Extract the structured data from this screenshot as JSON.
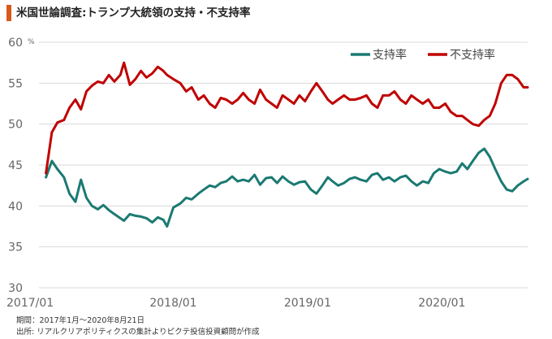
{
  "title": "米国世論調査:トランプ大統領の支持・不支持率",
  "footer": {
    "period": "期間：2017年1月～2020年8月21日",
    "source": "出所: リアルクリアポリティクスの集計よりピクテ投信投資顧問が作成"
  },
  "colors": {
    "accent": "#d85a1a",
    "approve": "#1a7a72",
    "disapprove": "#c00000",
    "grid": "#d9d9d9"
  },
  "chart_data": {
    "type": "line",
    "ylabel": "%",
    "ylim": [
      30,
      60
    ],
    "yticks": [
      30,
      35,
      40,
      45,
      50,
      55,
      60
    ],
    "xlim": [
      "2017-01-20",
      "2020-08-21"
    ],
    "xticks": [
      {
        "date": "2017-01-01",
        "label": "2017/01"
      },
      {
        "date": "2018-01-01",
        "label": "2018/01"
      },
      {
        "date": "2019-01-01",
        "label": "2019/01"
      },
      {
        "date": "2020-01-01",
        "label": "2020/01"
      }
    ],
    "grid": "horizontal",
    "legend_position": "top-right",
    "series": [
      {
        "name": "支持率",
        "color": "#1a7a72",
        "x": [
          "2017-01-20",
          "2017-02-05",
          "2017-02-20",
          "2017-03-10",
          "2017-03-25",
          "2017-04-10",
          "2017-04-25",
          "2017-05-10",
          "2017-05-25",
          "2017-06-10",
          "2017-06-25",
          "2017-07-10",
          "2017-07-25",
          "2017-08-10",
          "2017-08-20",
          "2017-09-05",
          "2017-09-20",
          "2017-10-05",
          "2017-10-20",
          "2017-11-05",
          "2017-11-20",
          "2017-12-05",
          "2017-12-15",
          "2018-01-01",
          "2018-01-20",
          "2018-02-05",
          "2018-02-20",
          "2018-03-10",
          "2018-03-25",
          "2018-04-10",
          "2018-04-25",
          "2018-05-10",
          "2018-05-25",
          "2018-06-10",
          "2018-06-25",
          "2018-07-10",
          "2018-07-25",
          "2018-08-10",
          "2018-08-25",
          "2018-09-10",
          "2018-09-25",
          "2018-10-10",
          "2018-10-25",
          "2018-11-10",
          "2018-11-25",
          "2018-12-10",
          "2018-12-25",
          "2019-01-10",
          "2019-01-25",
          "2019-02-10",
          "2019-02-25",
          "2019-03-10",
          "2019-03-25",
          "2019-04-10",
          "2019-04-25",
          "2019-05-10",
          "2019-05-25",
          "2019-06-10",
          "2019-06-25",
          "2019-07-10",
          "2019-07-25",
          "2019-08-10",
          "2019-08-25",
          "2019-09-10",
          "2019-09-25",
          "2019-10-10",
          "2019-10-25",
          "2019-11-10",
          "2019-11-25",
          "2019-12-10",
          "2019-12-25",
          "2020-01-10",
          "2020-01-25",
          "2020-02-10",
          "2020-02-25",
          "2020-03-10",
          "2020-03-25",
          "2020-04-10",
          "2020-04-25",
          "2020-05-10",
          "2020-05-25",
          "2020-06-10",
          "2020-06-25",
          "2020-07-10",
          "2020-07-25",
          "2020-08-10",
          "2020-08-21"
        ],
        "values": [
          43.5,
          45.5,
          44.5,
          43.5,
          41.5,
          40.5,
          43.2,
          41.0,
          40.0,
          39.6,
          40.1,
          39.5,
          39.0,
          38.5,
          38.2,
          39.0,
          38.8,
          38.7,
          38.5,
          38.0,
          38.6,
          38.3,
          37.5,
          39.8,
          40.3,
          41.0,
          40.8,
          41.5,
          42.0,
          42.5,
          42.3,
          42.8,
          43.0,
          43.6,
          43.0,
          43.2,
          43.0,
          43.8,
          42.6,
          43.4,
          43.5,
          42.8,
          43.6,
          43.0,
          42.6,
          42.9,
          43.0,
          42.0,
          41.5,
          42.5,
          43.5,
          43.0,
          42.5,
          42.8,
          43.3,
          43.5,
          43.2,
          43.0,
          43.8,
          44.0,
          43.2,
          43.5,
          43.0,
          43.5,
          43.7,
          43.0,
          42.5,
          43.0,
          42.8,
          44.0,
          44.5,
          44.2,
          44.0,
          44.2,
          45.2,
          44.5,
          45.5,
          46.5,
          47.0,
          46.0,
          44.5,
          43.0,
          42.0,
          41.8,
          42.5,
          43.0,
          43.3
        ]
      },
      {
        "name": "不支持率",
        "color": "#c00000",
        "x": [
          "2017-01-20",
          "2017-02-05",
          "2017-02-20",
          "2017-03-10",
          "2017-03-25",
          "2017-04-10",
          "2017-04-25",
          "2017-05-10",
          "2017-05-25",
          "2017-06-10",
          "2017-06-25",
          "2017-07-10",
          "2017-07-25",
          "2017-08-10",
          "2017-08-20",
          "2017-09-05",
          "2017-09-20",
          "2017-10-05",
          "2017-10-20",
          "2017-11-05",
          "2017-11-20",
          "2017-12-05",
          "2017-12-15",
          "2018-01-01",
          "2018-01-20",
          "2018-02-05",
          "2018-02-20",
          "2018-03-10",
          "2018-03-25",
          "2018-04-10",
          "2018-04-25",
          "2018-05-10",
          "2018-05-25",
          "2018-06-10",
          "2018-06-25",
          "2018-07-10",
          "2018-07-25",
          "2018-08-10",
          "2018-08-25",
          "2018-09-10",
          "2018-09-25",
          "2018-10-10",
          "2018-10-25",
          "2018-11-10",
          "2018-11-25",
          "2018-12-10",
          "2018-12-25",
          "2019-01-10",
          "2019-01-25",
          "2019-02-10",
          "2019-02-25",
          "2019-03-10",
          "2019-03-25",
          "2019-04-10",
          "2019-04-25",
          "2019-05-10",
          "2019-05-25",
          "2019-06-10",
          "2019-06-25",
          "2019-07-10",
          "2019-07-25",
          "2019-08-10",
          "2019-08-25",
          "2019-09-10",
          "2019-09-25",
          "2019-10-10",
          "2019-10-25",
          "2019-11-10",
          "2019-11-25",
          "2019-12-10",
          "2019-12-25",
          "2020-01-10",
          "2020-01-25",
          "2020-02-10",
          "2020-02-25",
          "2020-03-10",
          "2020-03-25",
          "2020-04-10",
          "2020-04-25",
          "2020-05-10",
          "2020-05-25",
          "2020-06-10",
          "2020-06-25",
          "2020-07-10",
          "2020-07-25",
          "2020-08-10",
          "2020-08-21"
        ],
        "values": [
          44.0,
          49.0,
          50.2,
          50.5,
          52.0,
          53.0,
          51.8,
          54.0,
          54.7,
          55.2,
          55.0,
          56.0,
          55.2,
          56.0,
          57.5,
          54.8,
          55.5,
          56.5,
          55.7,
          56.2,
          57.0,
          56.5,
          56.0,
          55.5,
          55.0,
          54.0,
          54.5,
          53.0,
          53.5,
          52.5,
          52.0,
          53.2,
          53.0,
          52.5,
          53.0,
          53.8,
          53.0,
          52.5,
          54.2,
          53.0,
          52.5,
          52.0,
          53.5,
          53.0,
          52.5,
          53.5,
          52.8,
          54.0,
          55.0,
          54.0,
          53.0,
          52.5,
          53.0,
          53.5,
          53.0,
          53.0,
          53.2,
          53.5,
          52.5,
          52.0,
          53.5,
          53.5,
          54.0,
          53.0,
          52.5,
          53.5,
          53.0,
          52.5,
          53.0,
          52.0,
          52.0,
          52.5,
          51.5,
          51.0,
          51.0,
          50.5,
          50.0,
          49.8,
          50.5,
          51.0,
          52.5,
          55.0,
          56.0,
          56.0,
          55.5,
          54.5,
          54.5
        ]
      }
    ]
  }
}
